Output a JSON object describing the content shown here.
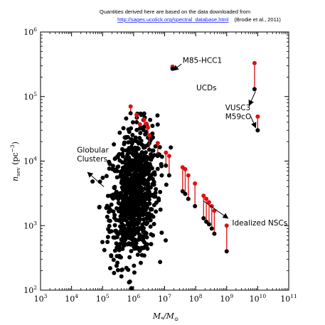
{
  "header": {
    "note_line1": "Quantities derived here are based on the data downloaded from",
    "note_link": "http://sages.ucolick.org/spectral_database.html",
    "note_cite": "(Brodie et al., 2011)"
  },
  "chart_data": {
    "type": "scatter",
    "xscale": "log",
    "yscale": "log",
    "xlim": [
      1000,
      100000000000
    ],
    "ylim": [
      100,
      1000000
    ],
    "grid": false,
    "xlabel_parts": [
      "M",
      "*",
      "/M",
      "⊙"
    ],
    "ylabel_parts": [
      "n",
      "sev",
      " (pc",
      "−3",
      ")"
    ],
    "x_tick_exponents": [
      3,
      4,
      5,
      6,
      7,
      8,
      9,
      10,
      11
    ],
    "y_tick_exponents": [
      2,
      3,
      4,
      5,
      6
    ],
    "tick_base": "10",
    "colors": {
      "observed": "#000000",
      "idealized": "#e01010"
    },
    "annotations": [
      {
        "id": "m85",
        "text": [
          "M85-HCC1"
        ],
        "text_at": [
          38000000.0,
          330000.0
        ],
        "from": [
          35000000.0,
          320000.0
        ],
        "to": [
          19000000.0,
          255000.0
        ]
      },
      {
        "id": "ucds",
        "text": [
          "UCDs"
        ],
        "text_at": [
          105000000.0,
          125000.0
        ],
        "from": [
          8500000000.0,
          120000.0
        ],
        "to": [
          5300000000.0,
          73000.0
        ]
      },
      {
        "id": "vusc3",
        "text": [
          "VUSC3",
          "M59cO"
        ],
        "text_at": [
          900000000.0,
          61000.0
        ],
        "from": [
          6000000000.0,
          49000.0
        ],
        "to": [
          8600000000.0,
          33000.0
        ]
      },
      {
        "id": "globular",
        "text": [
          "Globular",
          "Clusters"
        ],
        "text_at": [
          15000.0,
          13500.0
        ],
        "from": [
          110000.0,
          4000.0
        ],
        "to": [
          33000.0,
          6700.0
        ]
      },
      {
        "id": "nsc",
        "text": [
          "Idealized NSCs"
        ],
        "text_at": [
          1500000000.0,
          1010.0
        ],
        "from": [
          180000000.0,
          2400.0
        ],
        "to": [
          1100000000.0,
          1300.0
        ]
      }
    ],
    "pairs": [
      {
        "x": 18000000.0,
        "y_observed": 270000.0,
        "y_idealized": 290000.0
      },
      {
        "x": 7900000000.0,
        "y_observed": 130000.0,
        "y_idealized": 330000.0
      },
      {
        "x": 10000000000.0,
        "y_observed": 30000.0,
        "y_idealized": 49000.0
      },
      {
        "x": 800000.0,
        "y_observed": 55000.0,
        "y_idealized": 70000.0
      },
      {
        "x": 1250000.0,
        "y_observed": 40000.0,
        "y_idealized": 52000.0
      },
      {
        "x": 1600000.0,
        "y_observed": 32000.0,
        "y_idealized": 37000.0
      },
      {
        "x": 2200000.0,
        "y_observed": 34000.0,
        "y_idealized": 44000.0
      },
      {
        "x": 2600000.0,
        "y_observed": 28000.0,
        "y_idealized": 38000.0
      },
      {
        "x": 2900000.0,
        "y_observed": 23000.0,
        "y_idealized": 33000.0
      },
      {
        "x": 3200000.0,
        "y_observed": 15000.0,
        "y_idealized": 25000.0
      },
      {
        "x": 6000000.0,
        "y_observed": 12000.0,
        "y_idealized": 19000.0
      },
      {
        "x": 11000000.0,
        "y_observed": 8500.0,
        "y_idealized": 13500.0
      },
      {
        "x": 14000000.0,
        "y_observed": 6000.0,
        "y_idealized": 12000.0
      },
      {
        "x": 38000000.0,
        "y_observed": 3400.0,
        "y_idealized": 8000.0
      },
      {
        "x": 46000000.0,
        "y_observed": 3100.0,
        "y_idealized": 7500.0
      },
      {
        "x": 58000000.0,
        "y_observed": 2600.0,
        "y_idealized": 6000.0
      },
      {
        "x": 95000000.0,
        "y_observed": 2000.0,
        "y_idealized": 4500.0
      },
      {
        "x": 180000000.0,
        "y_observed": 1300.0,
        "y_idealized": 2900.0
      },
      {
        "x": 220000000.0,
        "y_observed": 1150.0,
        "y_idealized": 2600.0
      },
      {
        "x": 270000000.0,
        "y_observed": 1050.0,
        "y_idealized": 2300.0
      },
      {
        "x": 330000000.0,
        "y_observed": 900.0,
        "y_idealized": 2000.0
      },
      {
        "x": 400000000.0,
        "y_observed": 750.0,
        "y_idealized": 1700.0
      },
      {
        "x": 1000000000.0,
        "y_observed": 400.0,
        "y_idealized": 1000.0
      }
    ],
    "gc_cloud": {
      "center": [
        1000000.0,
        3000.0
      ],
      "sigma_log": [
        0.38,
        0.5
      ],
      "count": 900,
      "xlim": [
        12000.0,
        100000000.0
      ],
      "ylim": [
        100,
        110000.0
      ]
    }
  }
}
